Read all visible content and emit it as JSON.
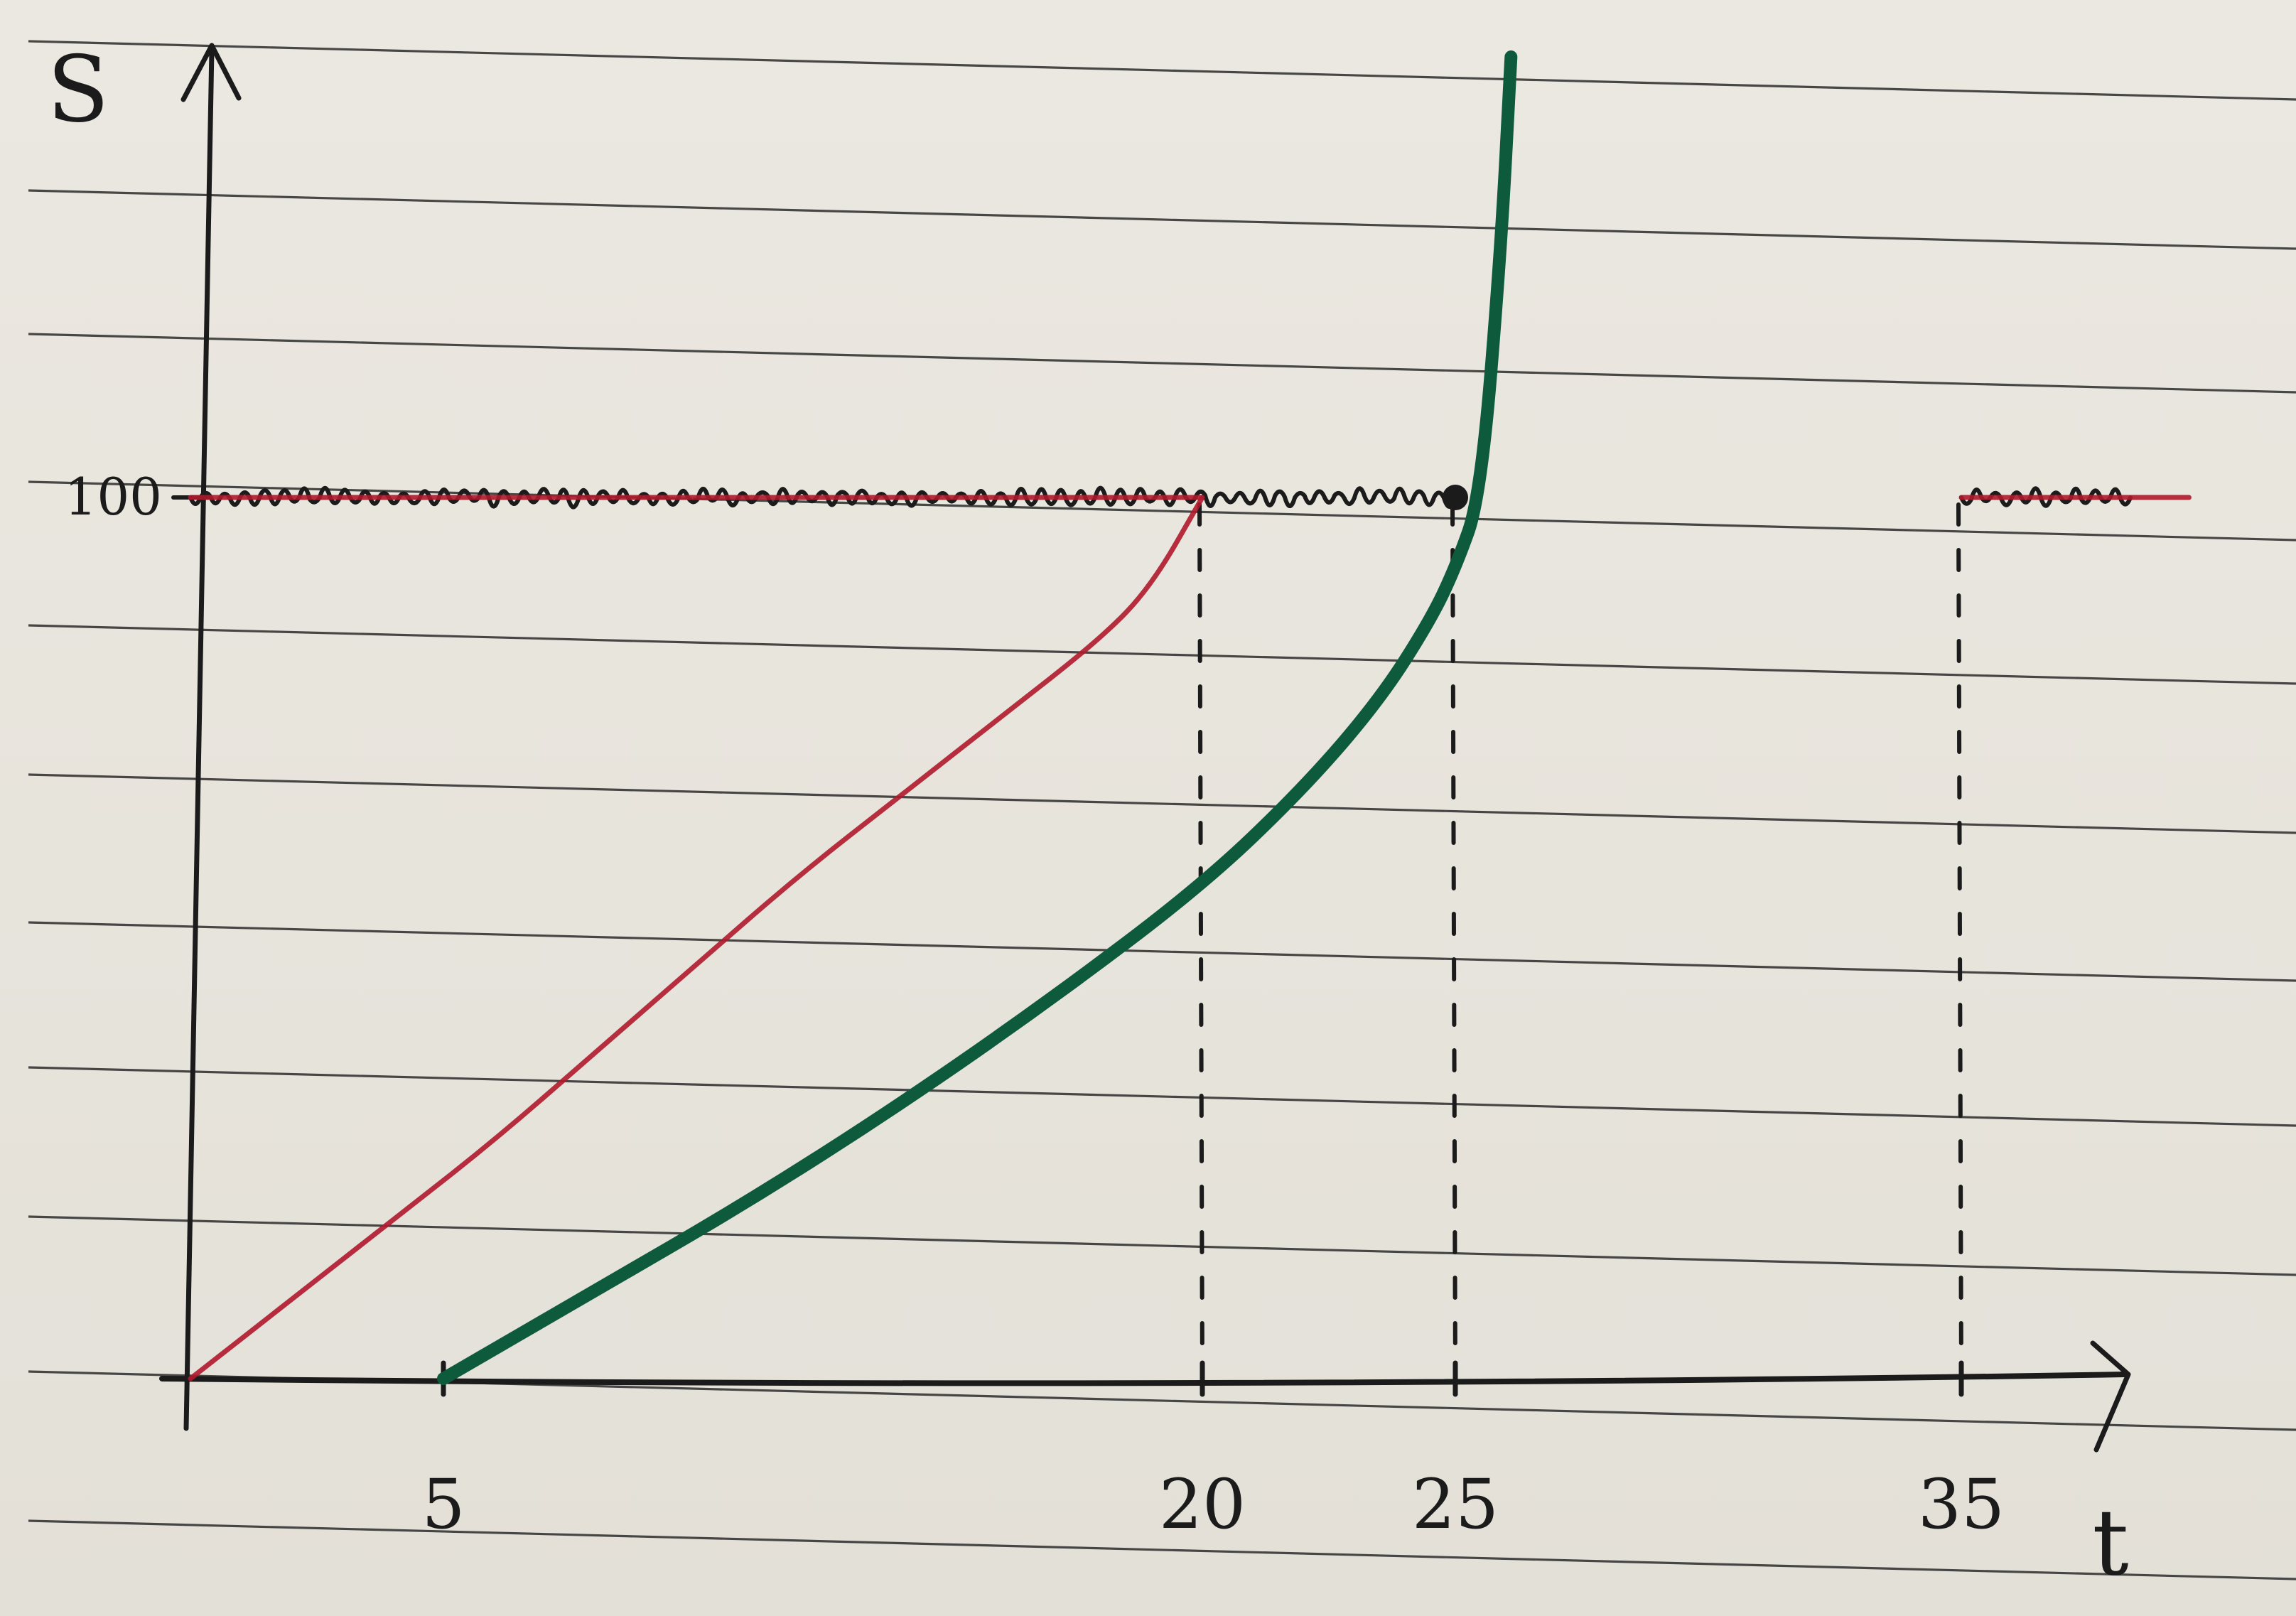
{
  "chart_data": {
    "type": "line",
    "title": "",
    "xlabel": "t",
    "ylabel": "S",
    "x_ticks": [
      5,
      20,
      25,
      35
    ],
    "y_ticks": [
      100
    ],
    "x_tick_labels": [
      "5",
      "20",
      "25",
      "35"
    ],
    "y_tick_labels": [
      "100"
    ],
    "xlim": [
      0,
      40
    ],
    "ylim": [
      0,
      150
    ],
    "grid": false,
    "legend": "none",
    "series": [
      {
        "color": "#b0182c",
        "style": "thin",
        "x": [
          0,
          2,
          4,
          6,
          8,
          10,
          12,
          14,
          16,
          18,
          19,
          20
        ],
        "y": [
          0,
          9,
          18,
          27,
          37,
          47,
          57,
          66,
          75,
          84,
          90,
          100
        ]
      },
      {
        "color": "#0d5a3c",
        "style": "thick",
        "x": [
          5,
          8,
          11,
          14,
          17,
          20,
          22,
          23.5,
          24.5,
          25,
          25.5,
          25.9,
          26.1
        ],
        "y": [
          0,
          10,
          20,
          31,
          43,
          56,
          67,
          77,
          86,
          92,
          100,
          128,
          150
        ]
      },
      {
        "color": "#1b1b1b",
        "style": "wavy",
        "x": [
          0,
          25
        ],
        "y": [
          100,
          100
        ]
      },
      {
        "color": "#b0182c",
        "style": "thin",
        "x": [
          0,
          20
        ],
        "y": [
          100,
          100
        ]
      },
      {
        "color": "#1b1b1b",
        "style": "wavy",
        "x": [
          35,
          38.5
        ],
        "y": [
          100,
          100
        ]
      },
      {
        "color": "#b0182c",
        "style": "thin",
        "x": [
          35,
          39.5
        ],
        "y": [
          100,
          100
        ]
      }
    ],
    "markers": [
      {
        "x": 25,
        "y": 100,
        "color": "#1b1b1b"
      }
    ],
    "dashed_verticals": [
      20,
      25,
      35
    ]
  },
  "colors": {
    "paper": "#e9e6de",
    "rule": "#2a2a2a",
    "ink": "#1b1b1b",
    "red_ink": "#b0182c",
    "green_ink": "#0d5a3c"
  }
}
